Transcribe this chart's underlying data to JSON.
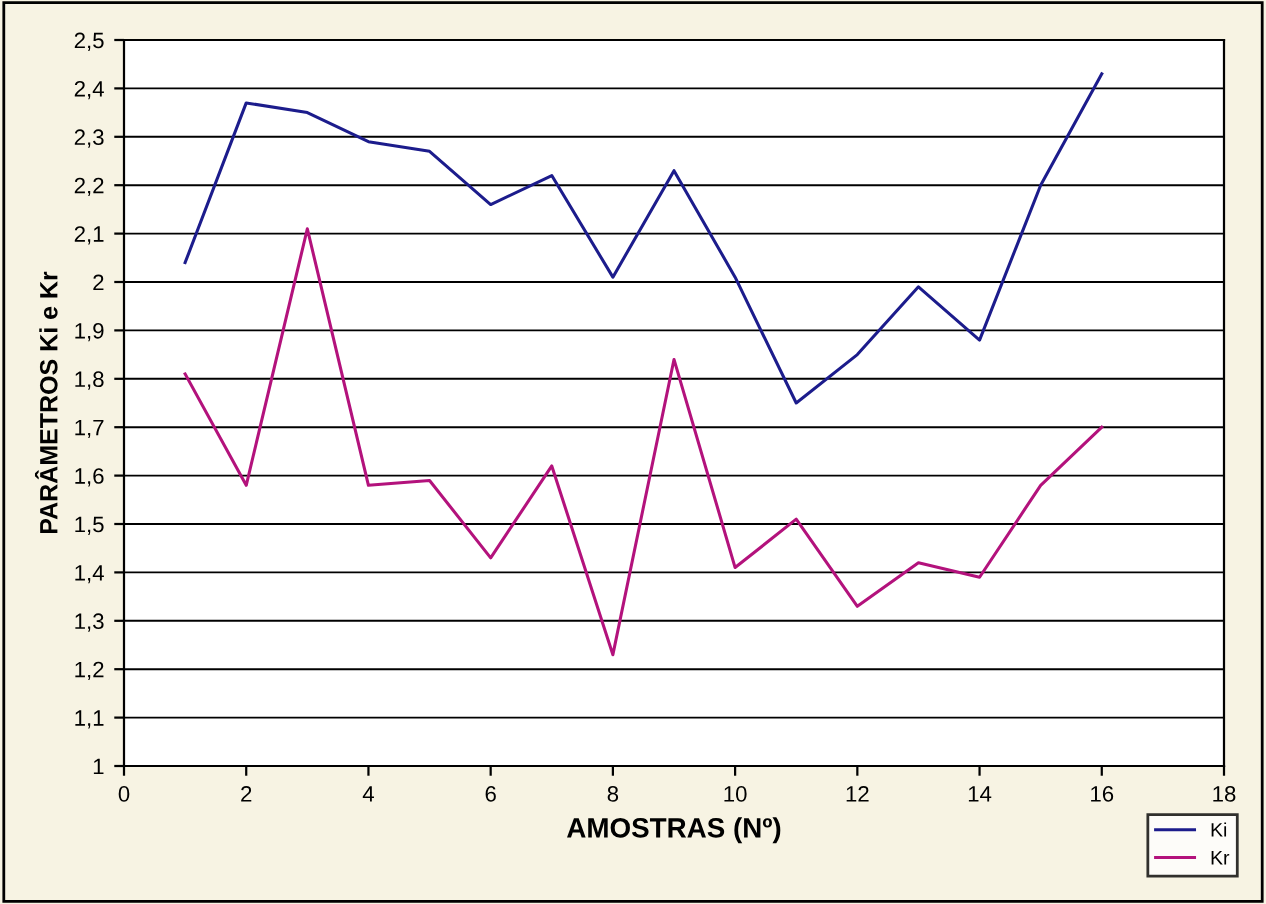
{
  "chart_data": {
    "type": "line",
    "xlabel": "AMOSTRAS (Nº)",
    "ylabel": "PARÂMETROS Ki e Kr",
    "x": [
      1,
      2,
      3,
      4,
      5,
      6,
      7,
      8,
      9,
      10,
      11,
      12,
      13,
      14,
      15,
      16
    ],
    "series": [
      {
        "name": "Ki",
        "color": "#1c1c8c",
        "values": [
          2.04,
          2.37,
          2.35,
          2.29,
          2.27,
          2.16,
          2.22,
          2.01,
          2.23,
          2.01,
          1.75,
          1.85,
          1.99,
          1.88,
          2.2,
          2.43
        ]
      },
      {
        "name": "Kr",
        "color": "#b3127c",
        "values": [
          1.81,
          1.58,
          2.11,
          1.58,
          1.59,
          1.43,
          1.62,
          1.23,
          1.84,
          1.41,
          1.51,
          1.33,
          1.42,
          1.39,
          1.58,
          1.7
        ]
      }
    ],
    "xlim": [
      0,
      18
    ],
    "xticks": [
      0,
      2,
      4,
      6,
      8,
      10,
      12,
      14,
      16,
      18
    ],
    "ylim": [
      1,
      2.5
    ],
    "yticks": [
      1,
      {
        "value": 1.1,
        "label": "1,1"
      },
      {
        "value": 1.2,
        "label": "1,2"
      },
      {
        "value": 1.3,
        "label": "1,3"
      },
      {
        "value": 1.4,
        "label": "1,4"
      },
      {
        "value": 1.5,
        "label": "1,5"
      },
      {
        "value": 1.6,
        "label": "1,6"
      },
      {
        "value": 1.7,
        "label": "1,7"
      },
      {
        "value": 1.8,
        "label": "1,8"
      },
      {
        "value": 1.9,
        "label": "1,9"
      },
      2,
      {
        "value": 2.1,
        "label": "2,1"
      },
      {
        "value": 2.2,
        "label": "2,2"
      },
      {
        "value": 2.3,
        "label": "2,3"
      },
      {
        "value": 2.4,
        "label": "2,4"
      },
      {
        "value": 2.5,
        "label": "2,5"
      }
    ],
    "grid": "y",
    "legend": "bottom right",
    "marker": "none",
    "line_style": "solid"
  }
}
